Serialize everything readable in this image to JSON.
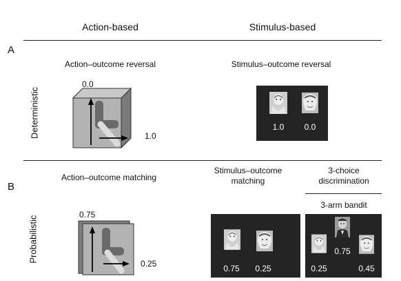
{
  "columns": {
    "action": "Action-based",
    "stimulus": "Stimulus-based"
  },
  "panels": {
    "a": "A",
    "b": "B"
  },
  "rows": {
    "deterministic": "Deterministic",
    "probabilistic": "Probabilistic"
  },
  "panel_a": {
    "action_task": "Action–outcome reversal",
    "action_values": {
      "top": "0.0",
      "right": "1.0"
    },
    "stimulus_task": "Stimulus–outcome reversal",
    "stimulus_values": [
      "1.0",
      "0.0"
    ]
  },
  "panel_b": {
    "action_task": "Action–outcome matching",
    "action_values": {
      "top": "0.75",
      "right": "0.25"
    },
    "stimulus_task_line1": "Stimulus–outcome",
    "stimulus_task_line2": "matching",
    "stimulus_values": [
      "0.75",
      "0.25"
    ],
    "choice_line1": "3-choice",
    "choice_line2": "discrimination",
    "bandit": "3-arm bandit",
    "bandit_values": [
      "0.25",
      "0.75",
      "0.45"
    ]
  },
  "icons": {
    "joystick": "joystick-box-icon",
    "face": "face-photo-icon"
  }
}
